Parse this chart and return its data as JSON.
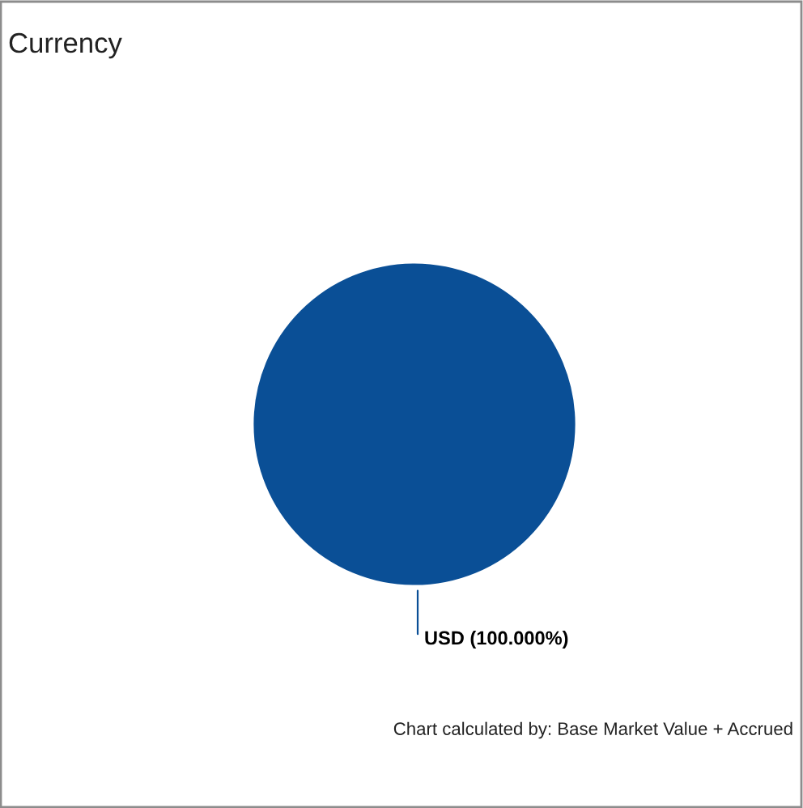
{
  "chart_data": {
    "type": "pie",
    "title": "Currency",
    "categories": [
      "USD"
    ],
    "values": [
      100
    ],
    "colors": [
      "#0a4f96"
    ],
    "value_labels": [
      "(100.000%)"
    ],
    "annotations": [
      "Chart calculated by: Base Market Value + Accrued"
    ]
  }
}
